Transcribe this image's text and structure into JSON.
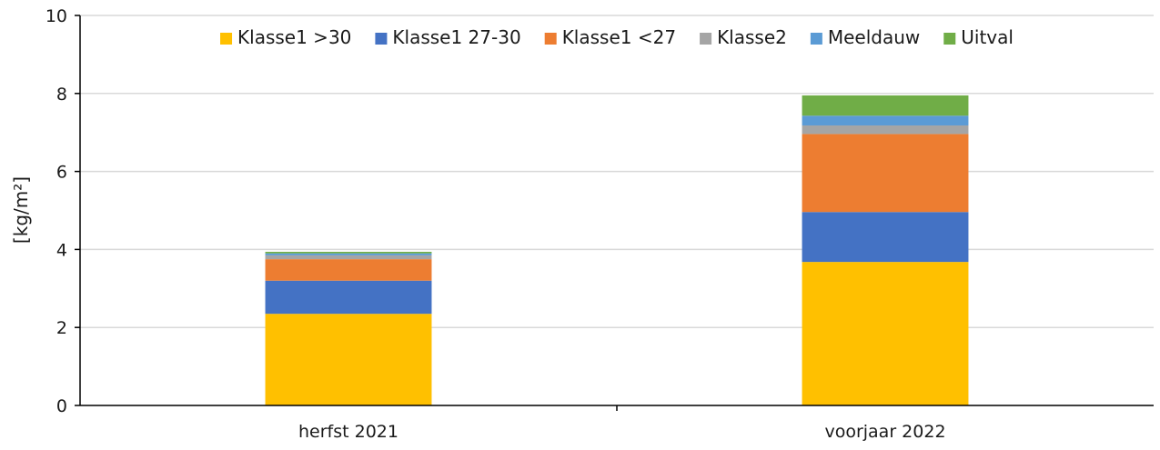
{
  "chart_data": {
    "type": "bar",
    "stacked": true,
    "title": "",
    "xlabel": "",
    "ylabel": "[kg/m²]",
    "ylim": [
      0,
      10
    ],
    "yticks": [
      "0",
      "2",
      "4",
      "6",
      "8",
      "10"
    ],
    "grid": true,
    "legend_position": "top",
    "categories": [
      "herfst 2021",
      "voorjaar 2022"
    ],
    "series": [
      {
        "name": "Klasse1 >30",
        "color": "#FFC000",
        "values": [
          2.35,
          3.68
        ]
      },
      {
        "name": "Klasse1 27-30",
        "color": "#4472C4",
        "values": [
          0.85,
          1.28
        ]
      },
      {
        "name": "Klasse1 <27",
        "color": "#ED7D31",
        "values": [
          0.55,
          2.0
        ]
      },
      {
        "name": "Klasse2",
        "color": "#A5A5A5",
        "values": [
          0.1,
          0.22
        ]
      },
      {
        "name": "Meeldauw",
        "color": "#5B9BD5",
        "values": [
          0.05,
          0.25
        ]
      },
      {
        "name": "Uitval",
        "color": "#70AD47",
        "values": [
          0.04,
          0.52
        ]
      }
    ]
  }
}
